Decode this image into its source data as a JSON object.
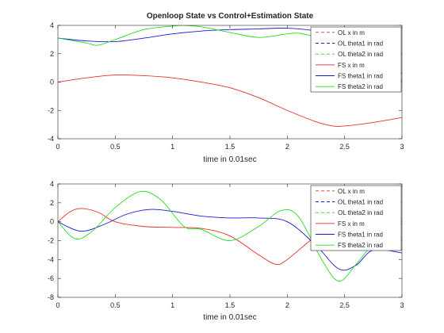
{
  "colors": {
    "red": "#e8302a",
    "blue": "#1a1ad4",
    "green": "#22dd22",
    "axis": "#262626",
    "background": "#ffffff"
  },
  "chart_data": [
    {
      "type": "line",
      "title": "Openloop State vs Control+Estimation State",
      "xlabel": "time in 0.01sec",
      "ylabel": "",
      "xlim": [
        0,
        3
      ],
      "ylim": [
        -4,
        4
      ],
      "xticks": [
        "0",
        "0.5",
        "1",
        "1.5",
        "2",
        "2.5",
        "3"
      ],
      "yticks": [
        "-4",
        "-2",
        "0",
        "2",
        "4"
      ],
      "grid": false,
      "legend_position": "top-right",
      "legend": [
        {
          "label": "OL x in m",
          "color": "#e8302a",
          "style": "dashed"
        },
        {
          "label": "OL theta1 in rad",
          "color": "#1a1ad4",
          "style": "dashed"
        },
        {
          "label": "OL theta2 in rad",
          "color": "#22dd22",
          "style": "dashed"
        },
        {
          "label": "FS x in m",
          "color": "#e8302a",
          "style": "solid"
        },
        {
          "label": "FS theta1 in rad",
          "color": "#1a1ad4",
          "style": "solid"
        },
        {
          "label": "FS theta2 in rad",
          "color": "#22dd22",
          "style": "solid"
        }
      ],
      "series": [
        {
          "name": "FS x in m",
          "color": "#e8302a",
          "x": [
            0,
            0.25,
            0.5,
            0.75,
            1.0,
            1.25,
            1.5,
            1.75,
            2.0,
            2.25,
            2.4,
            2.5,
            2.75,
            3.0
          ],
          "y": [
            0,
            0.3,
            0.5,
            0.45,
            0.3,
            0.0,
            -0.4,
            -1.1,
            -2.0,
            -2.8,
            -3.1,
            -3.1,
            -2.85,
            -2.5
          ]
        },
        {
          "name": "FS theta1 in rad",
          "color": "#1a1ad4",
          "x": [
            0,
            0.25,
            0.5,
            0.75,
            1.0,
            1.25,
            1.5,
            1.75,
            2.0,
            2.25,
            2.5,
            2.75,
            3.0
          ],
          "y": [
            3.1,
            2.9,
            2.85,
            3.1,
            3.4,
            3.6,
            3.7,
            3.75,
            3.8,
            3.6,
            3.1,
            1.5,
            0.6
          ]
        },
        {
          "name": "FS theta2 in rad",
          "color": "#22dd22",
          "x": [
            0,
            0.25,
            0.35,
            0.5,
            0.75,
            1.0,
            1.1,
            1.25,
            1.5,
            1.75,
            2.0,
            2.1,
            2.25,
            2.5,
            2.75,
            3.0
          ],
          "y": [
            3.1,
            2.75,
            2.6,
            3.0,
            3.7,
            3.95,
            4.0,
            3.9,
            3.5,
            3.15,
            3.4,
            3.45,
            3.2,
            2.9,
            1.0,
            0.1
          ]
        }
      ]
    },
    {
      "type": "line",
      "title": "",
      "xlabel": "time in 0.01sec",
      "ylabel": "",
      "xlim": [
        0,
        3
      ],
      "ylim": [
        -8,
        4
      ],
      "xticks": [
        "0",
        "0.5",
        "1",
        "1.5",
        "2",
        "2.5",
        "3"
      ],
      "yticks": [
        "-8",
        "-6",
        "-4",
        "-2",
        "0",
        "2",
        "4"
      ],
      "grid": false,
      "legend_position": "top-right",
      "legend": [
        {
          "label": "OL x in m",
          "color": "#e8302a",
          "style": "dashed"
        },
        {
          "label": "OL theta1 in rad",
          "color": "#1a1ad4",
          "style": "dashed"
        },
        {
          "label": "OL theta2 in rad",
          "color": "#22dd22",
          "style": "dashed"
        },
        {
          "label": "FS x in m",
          "color": "#e8302a",
          "style": "solid"
        },
        {
          "label": "FS theta1 in rad",
          "color": "#1a1ad4",
          "style": "solid"
        },
        {
          "label": "FS theta2 in rad",
          "color": "#22dd22",
          "style": "solid"
        }
      ],
      "series": [
        {
          "name": "FS x in m",
          "color": "#e8302a",
          "x": [
            0,
            0.1,
            0.2,
            0.35,
            0.5,
            0.75,
            1.0,
            1.25,
            1.5,
            1.75,
            1.9,
            2.0,
            2.25,
            2.4,
            2.5,
            2.75,
            3.0
          ],
          "y": [
            0,
            1.0,
            1.4,
            1.0,
            0.0,
            -0.5,
            -0.6,
            -0.7,
            -1.5,
            -3.5,
            -4.5,
            -4.0,
            -1.5,
            -0.5,
            0.0,
            -0.2,
            -0.2
          ]
        },
        {
          "name": "FS theta1 in rad",
          "color": "#1a1ad4",
          "x": [
            0,
            0.2,
            0.4,
            0.6,
            0.8,
            1.0,
            1.25,
            1.5,
            1.75,
            2.0,
            2.25,
            2.45,
            2.6,
            2.75,
            3.0
          ],
          "y": [
            0,
            -1.0,
            -0.3,
            0.8,
            1.3,
            1.1,
            0.6,
            0.4,
            0.4,
            0.0,
            -2.5,
            -5.0,
            -4.6,
            -3.0,
            -3.3
          ]
        },
        {
          "name": "FS theta2 in rad",
          "color": "#22dd22",
          "x": [
            0,
            0.15,
            0.3,
            0.5,
            0.72,
            0.9,
            1.1,
            1.25,
            1.5,
            1.75,
            1.95,
            2.1,
            2.3,
            2.45,
            2.6,
            2.75,
            2.9,
            3.0
          ],
          "y": [
            0,
            -1.8,
            -1.0,
            1.5,
            3.2,
            2.3,
            -0.5,
            -0.8,
            -2.0,
            -0.5,
            1.2,
            0.5,
            -4.0,
            -6.3,
            -4.5,
            -2.5,
            -2.8,
            -3.0
          ]
        }
      ]
    }
  ]
}
